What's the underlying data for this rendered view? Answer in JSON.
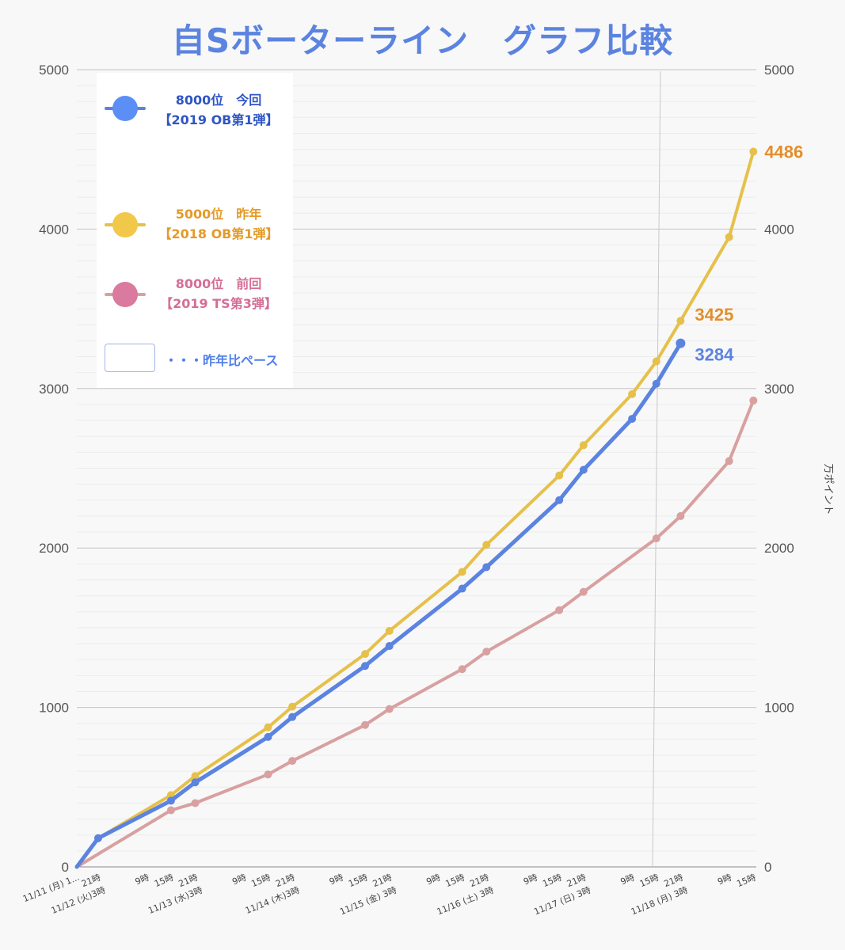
{
  "title": "自Sボーターライン　グラフ比較",
  "legend": {
    "current_line1": "8000位　今回",
    "current_line2": "【2019 OB第1弾】",
    "lastyear_line1": "5000位　昨年",
    "lastyear_line2": "【2018 OB第1弾】",
    "previous_line1": "8000位　前回",
    "previous_line2": "【2019 TS第3弾】",
    "pace_label": "・・・昨年比ペース"
  },
  "colors": {
    "current": "#5b83e0",
    "current_legend_text": "#2f55c4",
    "lastyear": "#e6c04a",
    "lastyear_legend_text": "#e49a28",
    "previous": "#d8a0a0",
    "previous_legend_text": "#d46e95",
    "label_current": "#5b83e0",
    "label_lastyear": "#e48e2a"
  },
  "chart_data": {
    "type": "line",
    "title": "自Sボーターライン　グラフ比較",
    "y_right_label": "万ポイント",
    "ylim": [
      0,
      5000
    ],
    "y_ticks": [
      "0",
      "1000",
      "2000",
      "3000",
      "4000",
      "5000"
    ],
    "x_ticks": [
      {
        "line1": "11/11 (月) 1...",
        "line2": ""
      },
      {
        "line1": "21時",
        "line2": "11/12 (火)3時"
      },
      {
        "line1": "9時",
        "line2": ""
      },
      {
        "line1": "15時",
        "line2": ""
      },
      {
        "line1": "21時",
        "line2": "11/13 (水)3時"
      },
      {
        "line1": "9時",
        "line2": ""
      },
      {
        "line1": "15時",
        "line2": ""
      },
      {
        "line1": "21時",
        "line2": "11/14 (木)3時"
      },
      {
        "line1": "9時",
        "line2": ""
      },
      {
        "line1": "15時",
        "line2": ""
      },
      {
        "line1": "21時",
        "line2": "11/15 (金) 3時"
      },
      {
        "line1": "9時",
        "line2": ""
      },
      {
        "line1": "15時",
        "line2": ""
      },
      {
        "line1": "21時",
        "line2": "11/16 (土) 3時"
      },
      {
        "line1": "9時",
        "line2": ""
      },
      {
        "line1": "15時",
        "line2": ""
      },
      {
        "line1": "21時",
        "line2": "11/17 (日) 3時"
      },
      {
        "line1": "9時",
        "line2": ""
      },
      {
        "line1": "15時",
        "line2": ""
      },
      {
        "line1": "21時",
        "line2": "11/18 (月) 3時"
      },
      {
        "line1": "9時",
        "line2": ""
      },
      {
        "line1": "15時",
        "line2": ""
      }
    ],
    "series": [
      {
        "key": "lastyear",
        "name": "5000位　昨年【2018 OB第1弾】",
        "points": [
          [
            0,
            0
          ],
          [
            0.88,
            180
          ],
          [
            3.88,
            450
          ],
          [
            4.88,
            570
          ],
          [
            7.88,
            875
          ],
          [
            8.88,
            1005
          ],
          [
            11.88,
            1335
          ],
          [
            12.88,
            1480
          ],
          [
            15.88,
            1850
          ],
          [
            16.88,
            2020
          ],
          [
            19.88,
            2455
          ],
          [
            20.88,
            2645
          ],
          [
            22.88,
            2965
          ],
          [
            23.88,
            3170
          ],
          [
            24.88,
            3425
          ],
          [
            26.88,
            3950
          ],
          [
            27.88,
            4486
          ]
        ],
        "end_label": "4486"
      },
      {
        "key": "current",
        "name": "8000位　今回【2019 OB第1弾】",
        "points": [
          [
            0,
            0
          ],
          [
            0.88,
            180
          ],
          [
            3.88,
            415
          ],
          [
            4.88,
            530
          ],
          [
            7.88,
            815
          ],
          [
            8.88,
            940
          ],
          [
            11.88,
            1260
          ],
          [
            12.88,
            1385
          ],
          [
            15.88,
            1745
          ],
          [
            16.88,
            1880
          ],
          [
            19.88,
            2300
          ],
          [
            20.88,
            2490
          ],
          [
            22.88,
            2810
          ],
          [
            23.88,
            3030
          ],
          [
            24.88,
            3284
          ]
        ],
        "end_label": "3284",
        "end_label_lastyear": "3425"
      },
      {
        "key": "previous",
        "name": "8000位　前回【2019 TS第3弾】",
        "points": [
          [
            0,
            0
          ],
          [
            3.88,
            355
          ],
          [
            4.88,
            400
          ],
          [
            7.88,
            580
          ],
          [
            8.88,
            665
          ],
          [
            11.88,
            890
          ],
          [
            12.88,
            990
          ],
          [
            15.88,
            1240
          ],
          [
            16.88,
            1350
          ],
          [
            19.88,
            1610
          ],
          [
            20.88,
            1725
          ],
          [
            23.88,
            2060
          ],
          [
            24.88,
            2200
          ],
          [
            26.88,
            2545
          ],
          [
            27.88,
            2925
          ]
        ]
      }
    ]
  }
}
